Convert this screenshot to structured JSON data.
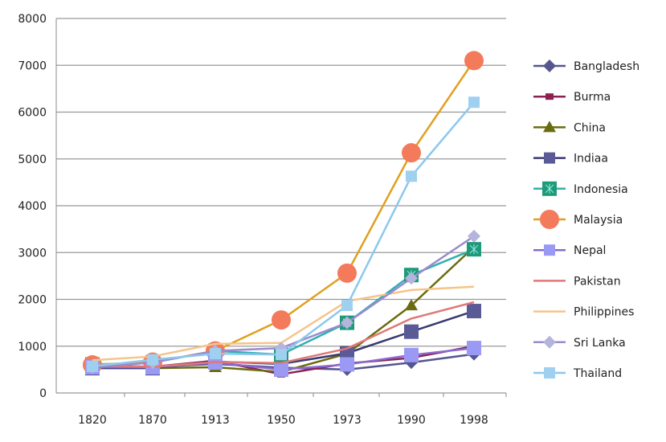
{
  "chart_data": {
    "type": "line",
    "title": "",
    "xlabel": "",
    "ylabel": "",
    "ylim": [
      0,
      8000
    ],
    "yticks": [
      0,
      1000,
      2000,
      3000,
      4000,
      5000,
      6000,
      7000,
      8000
    ],
    "categories": [
      "1820",
      "1870",
      "1913",
      "1950",
      "1973",
      "1990",
      "1998"
    ],
    "grid": true,
    "legend": "right",
    "series": [
      {
        "name": "Bangladesh",
        "color": "#55558f",
        "line": "#55558f",
        "marker": "diamond",
        "values": [
          580,
          560,
          620,
          540,
          500,
          650,
          830
        ]
      },
      {
        "name": "Burma",
        "color": "#8b2252",
        "line": "#8b2252",
        "marker": "square-small",
        "values": [
          580,
          560,
          690,
          400,
          630,
          750,
          1000
        ]
      },
      {
        "name": "China",
        "color": "#6b6b10",
        "line": "#6b6b10",
        "marker": "triangle",
        "values": [
          600,
          530,
          550,
          450,
          840,
          1870,
          3120
        ]
      },
      {
        "name": "Indiaa",
        "color": "#5a5a96",
        "line": "#3a3a70",
        "marker": "square",
        "values": [
          530,
          530,
          670,
          620,
          850,
          1310,
          1750
        ]
      },
      {
        "name": "Indonesia",
        "color": "#1f9a78",
        "line": "#30b0b0",
        "marker": "square-x",
        "values": [
          610,
          650,
          900,
          820,
          1500,
          2520,
          3070
        ]
      },
      {
        "name": "Malaysia",
        "color": "#f47a5c",
        "line": "#e0a020",
        "marker": "circle",
        "values": [
          600,
          660,
          900,
          1560,
          2560,
          5130,
          7100
        ]
      },
      {
        "name": "Nepal",
        "color": "#9a9af5",
        "line": "#8a6ad0",
        "marker": "square",
        "values": [
          550,
          550,
          650,
          500,
          610,
          810,
          960
        ]
      },
      {
        "name": "Pakistan",
        "color": "#e07878",
        "line": "#e07878",
        "marker": "none",
        "values": [
          580,
          560,
          660,
          640,
          950,
          1590,
          1940
        ]
      },
      {
        "name": "Philippines",
        "color": "#f5c48a",
        "line": "#f5c48a",
        "marker": "none",
        "values": [
          700,
          780,
          1050,
          1070,
          1960,
          2200,
          2270
        ]
      },
      {
        "name": "Sri Lanka",
        "color": "#b4b4dc",
        "line": "#9a8ad0",
        "marker": "diamond",
        "values": [
          550,
          650,
          900,
          960,
          1500,
          2450,
          3350
        ]
      },
      {
        "name": "Thailand",
        "color": "#9fd0f0",
        "line": "#8cc8ee",
        "marker": "square",
        "values": [
          570,
          710,
          840,
          820,
          1870,
          4630,
          6210
        ]
      }
    ]
  }
}
